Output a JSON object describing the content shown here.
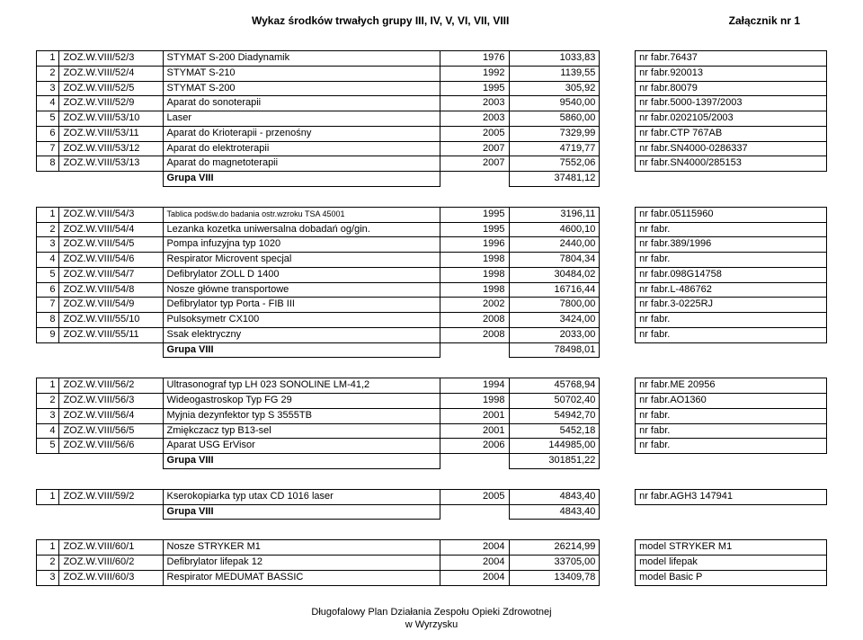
{
  "header_left": "Wykaz środków trwałych grupy  III, IV, V, VI, VII, VIII",
  "header_right": "Załącznik nr 1",
  "footer_line1": "Długofalowy Plan Działania Zespołu Opieki Zdrowotnej",
  "footer_line2": "w Wyrzysku",
  "blocks": [
    {
      "rows": [
        [
          "1",
          "ZOZ.W.VIII/52/3",
          "STYMAT S-200 Diadynamik",
          "1976",
          "1033,83",
          "nr fabr.76437",
          ""
        ],
        [
          "2",
          "ZOZ.W.VIII/52/4",
          "STYMAT S-210",
          "1992",
          "1139,55",
          "nr fabr.920013",
          ""
        ],
        [
          "3",
          "ZOZ.W.VIII/52/5",
          "STYMAT S-200",
          "1995",
          "305,92",
          "nr fabr.80079",
          ""
        ],
        [
          "4",
          "ZOZ.W.VIII/52/9",
          "Aparat do sonoterapii",
          "2003",
          "9540,00",
          "nr fabr.5000-1397/2003",
          ""
        ],
        [
          "5",
          "ZOZ.W.VIII/53/10",
          "Laser",
          "2003",
          "5860,00",
          "nr fabr.0202105/2003",
          ""
        ],
        [
          "6",
          "ZOZ.W.VIII/53/11",
          "Aparat do Krioterapii - przenośny",
          "2005",
          "7329,99",
          "nr fabr.CTP 767AB",
          ""
        ],
        [
          "7",
          "ZOZ.W.VIII/53/12",
          "Aparat do elektroterapii",
          "2007",
          "4719,77",
          "nr fabr.SN4000-0286337",
          ""
        ],
        [
          "8",
          "ZOZ.W.VIII/53/13",
          "Aparat do magnetoterapii",
          "2007",
          "7552,06",
          "nr fabr.SN4000/285153",
          ""
        ]
      ],
      "grupa_label": "Grupa VIII",
      "grupa_value": "37481,12"
    },
    {
      "rows": [
        [
          "1",
          "ZOZ.W.VIII/54/3",
          "Tablica podśw.do badania ostr.wzroku TSA 45001",
          "1995",
          "3196,11",
          "nr fabr.05115960",
          "small"
        ],
        [
          "2",
          "ZOZ.W.VIII/54/4",
          "Lezanka kozetka uniwersalna dobadań og/gin.",
          "1995",
          "4600,10",
          "nr fabr.",
          ""
        ],
        [
          "3",
          "ZOZ.W.VIII/54/5",
          "Pompa infuzyjna typ 1020",
          "1996",
          "2440,00",
          "nr fabr.389/1996",
          ""
        ],
        [
          "4",
          "ZOZ.W.VIII/54/6",
          "Respirator Microvent specjal",
          "1998",
          "7804,34",
          "nr fabr.",
          ""
        ],
        [
          "5",
          "ZOZ.W.VIII/54/7",
          "Defibrylator ZOLL D 1400",
          "1998",
          "30484,02",
          "nr fabr.098G14758",
          ""
        ],
        [
          "6",
          "ZOZ.W.VIII/54/8",
          "Nosze główne transportowe",
          "1998",
          "16716,44",
          "nr fabr.L-486762",
          ""
        ],
        [
          "7",
          "ZOZ.W.VIII/54/9",
          "Defibrylator typ Porta - FIB III",
          "2002",
          "7800,00",
          "nr fabr.3-0225RJ",
          ""
        ],
        [
          "8",
          "ZOZ.W.VIII/55/10",
          "Pulsoksymetr CX100",
          "2008",
          "3424,00",
          "nr fabr.",
          ""
        ],
        [
          "9",
          "ZOZ.W.VIII/55/11",
          "Ssak elektryczny",
          "2008",
          "2033,00",
          "nr fabr.",
          ""
        ]
      ],
      "grupa_label": "Grupa VIII",
      "grupa_value": "78498,01"
    },
    {
      "rows": [
        [
          "1",
          "ZOZ.W.VIII/56/2",
          "Ultrasonograf typ LH 023 SONOLINE LM-41,2",
          "1994",
          "45768,94",
          "nr fabr.ME 20956",
          ""
        ],
        [
          "2",
          "ZOZ.W.VIII/56/3",
          "Wideogastroskop Typ FG 29",
          "1998",
          "50702,40",
          "nr fabr.AO1360",
          ""
        ],
        [
          "3",
          "ZOZ.W.VIII/56/4",
          "Myjnia dezynfektor typ S 3555TB",
          "2001",
          "54942,70",
          "nr fabr.",
          ""
        ],
        [
          "4",
          "ZOZ.W.VIII/56/5",
          "Zmiękczacz typ B13-sel",
          "2001",
          "5452,18",
          "nr fabr.",
          ""
        ],
        [
          "5",
          "ZOZ.W.VIII/56/6",
          "Aparat USG ErVisor",
          "2006",
          "144985,00",
          "nr fabr.",
          ""
        ]
      ],
      "grupa_label": "Grupa VIII",
      "grupa_value": "301851,22"
    },
    {
      "rows": [
        [
          "1",
          "ZOZ.W.VIII/59/2",
          "Kserokopiarka typ utax CD 1016 laser",
          "2005",
          "4843,40",
          "nr fabr.AGH3 147941",
          ""
        ]
      ],
      "grupa_label": "Grupa VIII",
      "grupa_value": "4843,40"
    },
    {
      "rows": [
        [
          "1",
          "ZOZ.W.VIII/60/1",
          "Nosze  STRYKER M1",
          "2004",
          "26214,99",
          "model STRYKER M1",
          ""
        ],
        [
          "2",
          "ZOZ.W.VIII/60/2",
          "Defibrylator lifepak 12",
          "2004",
          "33705,00",
          "model lifepak",
          ""
        ],
        [
          "3",
          "ZOZ.W.VIII/60/3",
          "Respirator MEDUMAT BASSIC",
          "2004",
          "13409,78",
          "model Basic P",
          ""
        ]
      ],
      "grupa_label": "",
      "grupa_value": ""
    }
  ]
}
